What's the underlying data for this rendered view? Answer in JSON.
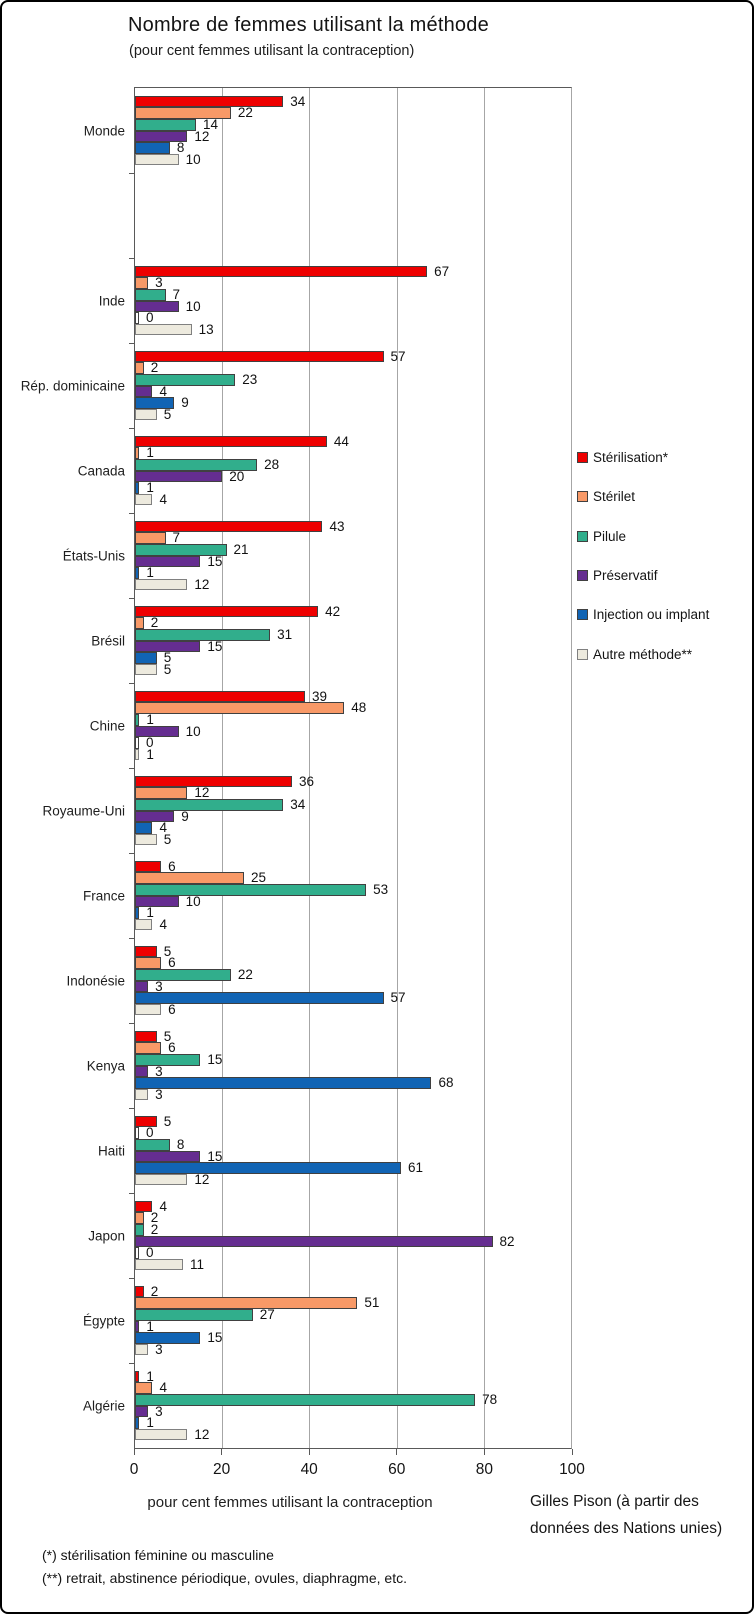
{
  "title": "Nombre de femmes utilisant la méthode",
  "subtitle": "(pour cent femmes utilisant la contraception)",
  "chart_data": {
    "type": "bar",
    "orientation": "horizontal",
    "categories": [
      "Monde",
      "",
      "Inde",
      "Rép. dominicaine",
      "Canada",
      "États-Unis",
      "Brésil",
      "Chine",
      "Royaume-Uni",
      "France",
      "Indonésie",
      "Kenya",
      "Haiti",
      "Japon",
      "Égypte",
      "Algérie"
    ],
    "series": [
      {
        "name": "Stérilisation*",
        "color": "#ee0000",
        "values": [
          34,
          null,
          67,
          57,
          44,
          43,
          42,
          39,
          36,
          6,
          5,
          5,
          5,
          4,
          2,
          1
        ]
      },
      {
        "name": "Stérilet",
        "color": "#f89967",
        "values": [
          22,
          null,
          3,
          2,
          1,
          7,
          2,
          48,
          12,
          25,
          6,
          6,
          0,
          2,
          51,
          4
        ]
      },
      {
        "name": "Pilule",
        "color": "#31ae8c",
        "values": [
          14,
          null,
          7,
          23,
          28,
          21,
          31,
          1,
          34,
          53,
          22,
          15,
          8,
          2,
          27,
          78
        ]
      },
      {
        "name": "Préservatif",
        "color": "#652d90",
        "values": [
          12,
          null,
          10,
          4,
          20,
          15,
          15,
          10,
          9,
          10,
          3,
          3,
          15,
          82,
          1,
          3
        ]
      },
      {
        "name": "Injection ou implant",
        "color": "#1164b4",
        "values": [
          8,
          null,
          0,
          9,
          1,
          1,
          5,
          0,
          4,
          1,
          57,
          68,
          61,
          0,
          15,
          1
        ]
      },
      {
        "name": "Autre méthode**",
        "color": "#edeade",
        "values": [
          10,
          null,
          13,
          5,
          4,
          12,
          5,
          1,
          5,
          4,
          6,
          3,
          12,
          11,
          3,
          12
        ]
      }
    ],
    "xlim": [
      0,
      100
    ],
    "x_ticks": [
      "0",
      "20",
      "40",
      "60",
      "80",
      "100"
    ],
    "xlabel": "pour cent femmes utilisant la contraception",
    "grid": true,
    "legend_position": "right"
  },
  "credit": "Gilles Pison (à partir des données des Nations unies)",
  "footnotes": [
    "(*) stérilisation féminine ou masculine",
    "(**) retrait, abstinence périodique, ovules, diaphragme, etc."
  ]
}
